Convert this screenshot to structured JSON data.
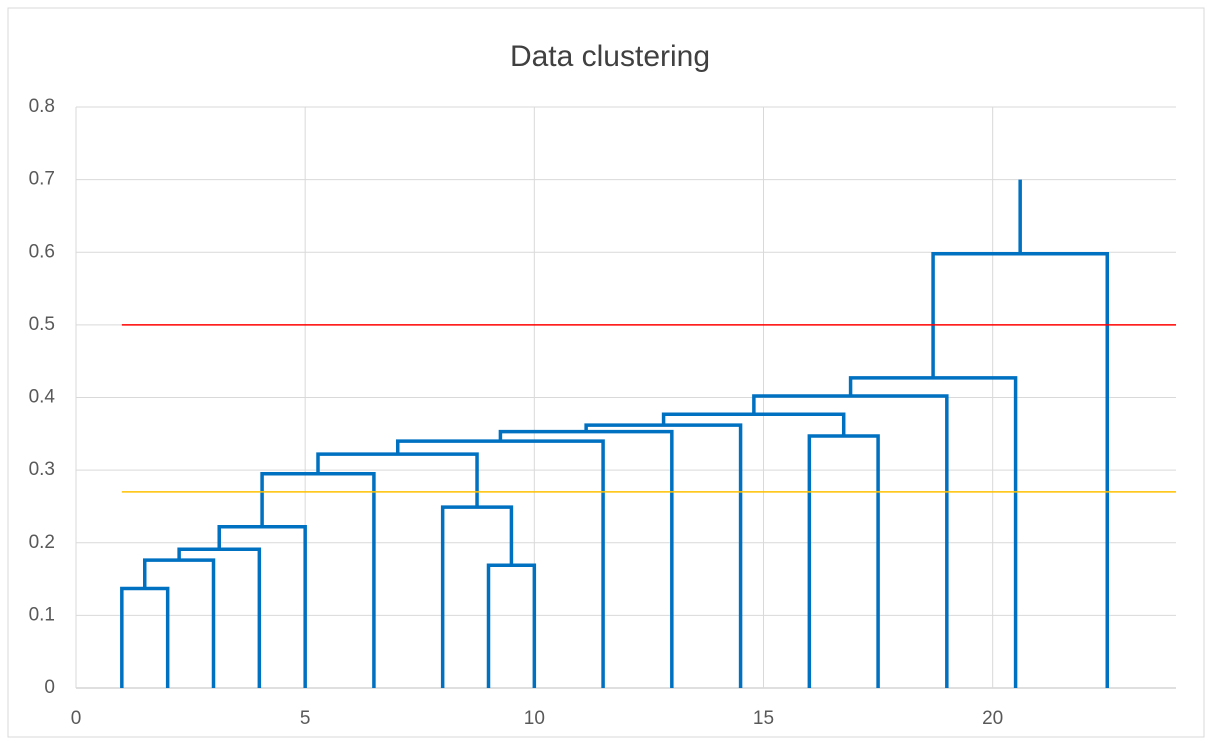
{
  "chart_data": {
    "type": "line",
    "title": "Data clustering",
    "xlim": [
      0,
      24
    ],
    "xticks": [
      0,
      5,
      10,
      15,
      20
    ],
    "ylim": [
      0,
      0.8
    ],
    "yticks": [
      0,
      0.1,
      0.2,
      0.3,
      0.4,
      0.5,
      0.6,
      0.7,
      0.8
    ],
    "grid": true,
    "series": [
      {
        "color": "#0070c0",
        "x": [
          1,
          1,
          2,
          2,
          null,
          1.5,
          1.5,
          3,
          3,
          null,
          2.25,
          2.25,
          4,
          4,
          null,
          3.125,
          3.125,
          5,
          5,
          null,
          4.06,
          4.06,
          6.5,
          6.5,
          null,
          9,
          9,
          10,
          10,
          null,
          8,
          8,
          9.5,
          9.5,
          null,
          5.28,
          5.28,
          8.75,
          8.75,
          null,
          7.02,
          7.02,
          11.5,
          11.5,
          null,
          9.26,
          9.26,
          13,
          13,
          null,
          11.13,
          11.13,
          14.5,
          14.5,
          null,
          16,
          16,
          17.5,
          17.5,
          null,
          12.82,
          12.82,
          16.75,
          16.75,
          null,
          14.79,
          14.79,
          19,
          19,
          null,
          16.9,
          16.9,
          20.5,
          20.5,
          null,
          18.7,
          18.7,
          22.5,
          22.5,
          null,
          20.6,
          20.6
        ],
        "y": [
          0,
          0.137,
          0.137,
          0,
          null,
          0.137,
          0.176,
          0.176,
          0,
          null,
          0.176,
          0.191,
          0.191,
          0,
          null,
          0.191,
          0.222,
          0.222,
          0,
          null,
          0.222,
          0.295,
          0.295,
          0,
          null,
          0,
          0.169,
          0.169,
          0,
          null,
          0,
          0.249,
          0.249,
          0.169,
          null,
          0.295,
          0.322,
          0.322,
          0.249,
          null,
          0.322,
          0.34,
          0.34,
          0,
          null,
          0.34,
          0.353,
          0.353,
          0,
          null,
          0.353,
          0.362,
          0.362,
          0,
          null,
          0,
          0.347,
          0.347,
          0,
          null,
          0.362,
          0.377,
          0.377,
          0.347,
          null,
          0.377,
          0.402,
          0.402,
          0,
          null,
          0.402,
          0.427,
          0.427,
          0,
          null,
          0.427,
          0.598,
          0.598,
          0,
          null,
          0.598,
          0.7
        ]
      },
      {
        "color": "#ff0000",
        "x": [
          1,
          24
        ],
        "y": [
          0.5,
          0.5
        ]
      },
      {
        "color": "#ffc000",
        "x": [
          1,
          24
        ],
        "y": [
          0.27,
          0.27
        ]
      }
    ]
  }
}
